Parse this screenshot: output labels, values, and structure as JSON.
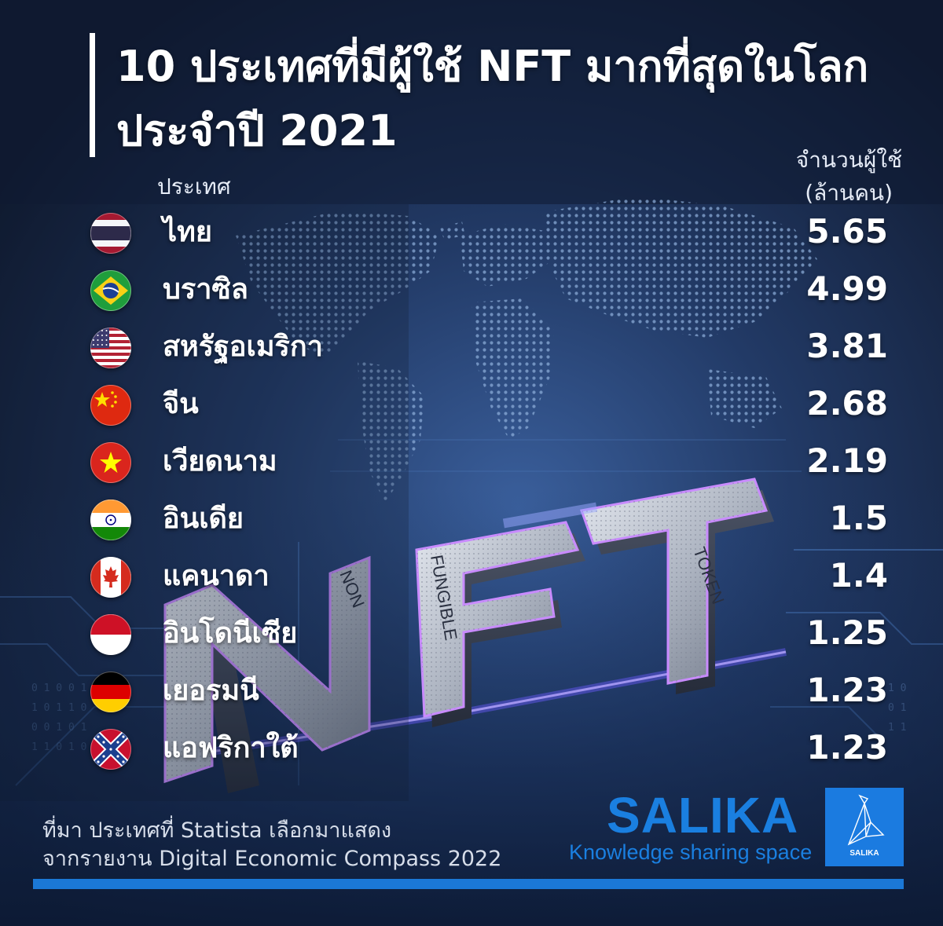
{
  "title": {
    "line1": "10 ประเทศที่มีผู้ใช้ NFT มากที่สุดในโลก",
    "line2": "ประจำปี 2021"
  },
  "headers": {
    "country": "ประเทศ",
    "value_line1": "จำนวนผู้ใช้",
    "value_line2": "(ล้านคน)"
  },
  "nft_art": {
    "letters": [
      "N",
      "F",
      "T"
    ],
    "caption_n": "NON",
    "caption_f": "FUNGIBLE",
    "caption_t": "TOKEN"
  },
  "chart_data": {
    "type": "table",
    "title": "10 ประเทศที่มีผู้ใช้ NFT มากที่สุดในโลก ประจำปี 2021",
    "columns": [
      "ประเทศ",
      "จำนวนผู้ใช้ (ล้านคน)"
    ],
    "categories": [
      "ไทย",
      "บราซิล",
      "สหรัฐอเมริกา",
      "จีน",
      "เวียดนาม",
      "อินเดีย",
      "แคนาดา",
      "อินโดนีเซีย",
      "เยอรมนี",
      "แอฟริกาใต้"
    ],
    "values": [
      "5.65",
      "4.99",
      "3.81",
      "2.68",
      "2.19",
      "1.5",
      "1.4",
      "1.25",
      "1.23",
      "1.23"
    ],
    "flag_icons": [
      "flag-thailand-icon",
      "flag-brazil-icon",
      "flag-usa-icon",
      "flag-china-icon",
      "flag-vietnam-icon",
      "flag-india-icon",
      "flag-canada-icon",
      "flag-indonesia-icon",
      "flag-germany-icon",
      "flag-south-africa-icon"
    ]
  },
  "source": {
    "line1": "ที่มา ประเทศที่ Statista เลือกมาแสดง",
    "line2": "จากรายงาน Digital Economic Compass 2022"
  },
  "brand": {
    "name": "SALIKA",
    "tagline": "Knowledge sharing space",
    "badge_text": "SALIKA",
    "badge_icon": "bird-logo-icon"
  },
  "colors": {
    "background": "#16233f",
    "brand_blue": "#1a7fe0",
    "footer_rule": "#1b78d6",
    "text": "#ffffff"
  }
}
